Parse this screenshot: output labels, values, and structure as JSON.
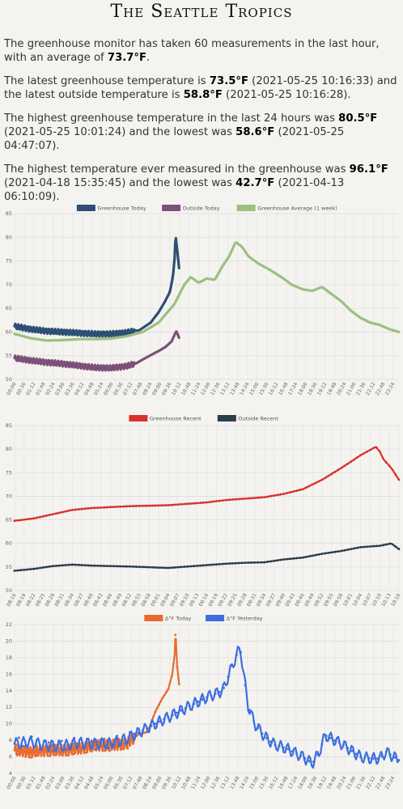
{
  "site_title": "The Seattle Tropics",
  "stats": {
    "p1_a": "The greenhouse monitor has taken 60 measurements in the last hour, with an average of ",
    "p1_v": "73.7°F",
    "p1_b": ".",
    "p2_a": "The latest greenhouse temperature is ",
    "p2_v1": "73.5°F",
    "p2_b": " (2021-05-25 10:16:33) and the latest outside temperature is ",
    "p2_v2": "58.8°F",
    "p2_c": " (2021-05-25 10:16:28).",
    "p3_a": "The highest greenhouse temperature in the last 24 hours was ",
    "p3_v1": "80.5°F",
    "p3_b": " (2021-05-25 10:01:24) and the lowest was ",
    "p3_v2": "58.6°F",
    "p3_c": " (2021-05-25 04:47:07).",
    "p4_a": "The highest temperature ever measured in the greenhouse was ",
    "p4_v1": "96.1°F",
    "p4_b": " (2021-04-18 15:35:45) and the lowest was ",
    "p4_v2": "42.7°F",
    "p4_c": " (2021-04-13 06:10:09)."
  },
  "chart_data": [
    {
      "type": "line",
      "legend_position": "top",
      "grid": true,
      "ylim": [
        50,
        85
      ],
      "yticks": [
        50,
        55,
        60,
        65,
        70,
        75,
        80,
        85
      ],
      "xlim": [
        0,
        24
      ],
      "xtick_labels": [
        "00:00",
        "00:36",
        "01:12",
        "01:48",
        "02:24",
        "03:00",
        "03:36",
        "04:12",
        "04:48",
        "05:24",
        "06:00",
        "06:36",
        "07:12",
        "07:48",
        "08:24",
        "09:00",
        "09:36",
        "10:12",
        "10:48",
        "11:24",
        "12:00",
        "12:36",
        "13:12",
        "13:48",
        "14:24",
        "15:00",
        "15:36",
        "16:12",
        "16:48",
        "17:24",
        "18:00",
        "18:36",
        "19:12",
        "19:48",
        "20:24",
        "21:00",
        "21:36",
        "22:12",
        "22:48",
        "23:24"
      ],
      "series": [
        {
          "name": "Greenhouse Today",
          "color": "#2e4f74",
          "points": [
            [
              0,
              61.2
            ],
            [
              1,
              60.6
            ],
            [
              2,
              60.2
            ],
            [
              3,
              60.0
            ],
            [
              4,
              59.8
            ],
            [
              5,
              59.6
            ],
            [
              6,
              59.6
            ],
            [
              7,
              59.9
            ],
            [
              7.8,
              60.4
            ],
            [
              8.5,
              62.0
            ],
            [
              9.0,
              64.2
            ],
            [
              9.4,
              66.5
            ],
            [
              9.7,
              68.5
            ],
            [
              9.9,
              72
            ],
            [
              10.0,
              76
            ],
            [
              10.05,
              80.5
            ],
            [
              10.15,
              77.5
            ],
            [
              10.27,
              73.5
            ]
          ]
        },
        {
          "name": "Outside Today",
          "color": "#7e4f7a",
          "points": [
            [
              0,
              54.5
            ],
            [
              1,
              54.0
            ],
            [
              2,
              53.6
            ],
            [
              3,
              53.3
            ],
            [
              4,
              52.9
            ],
            [
              5,
              52.5
            ],
            [
              6,
              52.4
            ],
            [
              7,
              52.8
            ],
            [
              7.6,
              53.4
            ],
            [
              8.0,
              54.2
            ],
            [
              8.6,
              55.3
            ],
            [
              9.0,
              56.0
            ],
            [
              9.4,
              56.8
            ],
            [
              9.8,
              58.0
            ],
            [
              10.0,
              59.5
            ],
            [
              10.1,
              60.2
            ],
            [
              10.27,
              58.8
            ]
          ]
        },
        {
          "name": "Greenhouse Average (1 week)",
          "color": "#9dbf82",
          "points": [
            [
              0,
              59.6
            ],
            [
              1,
              58.7
            ],
            [
              2,
              58.2
            ],
            [
              3,
              58.3
            ],
            [
              4,
              58.5
            ],
            [
              5,
              58.5
            ],
            [
              6,
              58.6
            ],
            [
              7,
              59.1
            ],
            [
              8,
              60.0
            ],
            [
              9,
              62.0
            ],
            [
              10,
              66.0
            ],
            [
              10.6,
              70.0
            ],
            [
              11.0,
              71.6
            ],
            [
              11.5,
              70.4
            ],
            [
              12.0,
              71.3
            ],
            [
              12.5,
              71.0
            ],
            [
              13.0,
              74.0
            ],
            [
              13.4,
              76.0
            ],
            [
              13.8,
              79.0
            ],
            [
              14.2,
              78.0
            ],
            [
              14.6,
              76.0
            ],
            [
              15.2,
              74.5
            ],
            [
              16.0,
              73.0
            ],
            [
              16.7,
              71.5
            ],
            [
              17.3,
              70.0
            ],
            [
              18.0,
              69.0
            ],
            [
              18.6,
              68.7
            ],
            [
              19.2,
              69.5
            ],
            [
              19.8,
              68.0
            ],
            [
              20.4,
              66.5
            ],
            [
              21.0,
              64.5
            ],
            [
              21.6,
              63.0
            ],
            [
              22.2,
              62.0
            ],
            [
              22.8,
              61.5
            ],
            [
              23.4,
              60.6
            ],
            [
              24,
              60.0
            ]
          ]
        }
      ]
    },
    {
      "type": "line",
      "legend_position": "top",
      "grid": true,
      "ylim": [
        50,
        85
      ],
      "yticks": [
        50,
        55,
        60,
        65,
        70,
        75,
        80,
        85
      ],
      "xlim": [
        0,
        1
      ],
      "xtick_labels": [
        "08:16",
        "08:19",
        "08:22",
        "08:25",
        "08:28",
        "08:31",
        "08:34",
        "08:37",
        "08:40",
        "08:43",
        "08:46",
        "08:49",
        "08:52",
        "08:55",
        "08:58",
        "09:01",
        "09:04",
        "09:07",
        "09:10",
        "09:13",
        "09:16",
        "09:19",
        "09:22",
        "09:25",
        "09:28",
        "09:31",
        "09:34",
        "09:37",
        "09:40",
        "09:43",
        "09:46",
        "09:49",
        "09:52",
        "09:55",
        "09:58",
        "10:01",
        "10:04",
        "10:07",
        "10:10",
        "10:13",
        "10:16"
      ],
      "series": [
        {
          "name": "Greenhouse Recent",
          "color": "#d9322e",
          "points": [
            [
              0,
              64.8
            ],
            [
              0.05,
              65.3
            ],
            [
              0.1,
              66.2
            ],
            [
              0.15,
              67.1
            ],
            [
              0.2,
              67.5
            ],
            [
              0.3,
              67.9
            ],
            [
              0.4,
              68.1
            ],
            [
              0.5,
              68.7
            ],
            [
              0.55,
              69.2
            ],
            [
              0.6,
              69.5
            ],
            [
              0.65,
              69.8
            ],
            [
              0.7,
              70.5
            ],
            [
              0.75,
              71.5
            ],
            [
              0.8,
              73.5
            ],
            [
              0.85,
              76.0
            ],
            [
              0.88,
              77.6
            ],
            [
              0.9,
              78.7
            ],
            [
              0.94,
              80.5
            ],
            [
              0.95,
              79.5
            ],
            [
              0.96,
              77.8
            ],
            [
              0.98,
              76.0
            ],
            [
              1.0,
              73.5
            ]
          ]
        },
        {
          "name": "Outside Recent",
          "color": "#2c3e4a",
          "points": [
            [
              0,
              54.2
            ],
            [
              0.05,
              54.6
            ],
            [
              0.1,
              55.2
            ],
            [
              0.15,
              55.5
            ],
            [
              0.2,
              55.3
            ],
            [
              0.3,
              55.1
            ],
            [
              0.4,
              54.8
            ],
            [
              0.5,
              55.4
            ],
            [
              0.55,
              55.7
            ],
            [
              0.6,
              55.9
            ],
            [
              0.65,
              56.0
            ],
            [
              0.7,
              56.6
            ],
            [
              0.75,
              57.0
            ],
            [
              0.8,
              57.8
            ],
            [
              0.85,
              58.4
            ],
            [
              0.9,
              59.2
            ],
            [
              0.95,
              59.5
            ],
            [
              0.98,
              60.0
            ],
            [
              1.0,
              58.8
            ]
          ]
        }
      ]
    },
    {
      "type": "line",
      "legend_position": "top",
      "grid": true,
      "ylim": [
        4,
        22
      ],
      "yticks": [
        4,
        6,
        8,
        10,
        12,
        14,
        16,
        18,
        20,
        22
      ],
      "xlim": [
        0,
        24
      ],
      "xtick_labels": [
        "00:00",
        "00:36",
        "01:12",
        "01:48",
        "02:24",
        "03:00",
        "03:36",
        "04:12",
        "04:48",
        "05:24",
        "06:00",
        "06:36",
        "07:12",
        "07:48",
        "08:24",
        "09:00",
        "09:36",
        "10:12",
        "10:48",
        "11:24",
        "12:00",
        "12:36",
        "13:12",
        "13:48",
        "14:24",
        "15:00",
        "15:36",
        "16:12",
        "16:48",
        "17:24",
        "18:00",
        "18:36",
        "19:12",
        "19:48",
        "20:24",
        "21:00",
        "21:36",
        "22:12",
        "22:48",
        "23:24"
      ],
      "series": [
        {
          "name": "Δ°F Today",
          "color": "#e96a2f",
          "points": [
            [
              0,
              6.8
            ],
            [
              1,
              6.6
            ],
            [
              2,
              6.8
            ],
            [
              3,
              6.8
            ],
            [
              4,
              7.0
            ],
            [
              5,
              7.4
            ],
            [
              6,
              7.4
            ],
            [
              7,
              7.6
            ],
            [
              7.8,
              8.8
            ],
            [
              8.3,
              9.0
            ],
            [
              8.8,
              11.5
            ],
            [
              9.2,
              13.0
            ],
            [
              9.6,
              14.2
            ],
            [
              9.85,
              16.0
            ],
            [
              10.0,
              18.5
            ],
            [
              10.05,
              21.2
            ],
            [
              10.15,
              17.0
            ],
            [
              10.27,
              14.8
            ]
          ]
        },
        {
          "name": "Δ°F Yesterday",
          "color": "#3b6fe0",
          "points": [
            [
              0,
              7.6
            ],
            [
              1,
              7.8
            ],
            [
              2,
              7.4
            ],
            [
              3,
              7.3
            ],
            [
              4,
              7.7
            ],
            [
              5,
              7.6
            ],
            [
              6,
              7.6
            ],
            [
              7,
              8.2
            ],
            [
              8,
              9.2
            ],
            [
              9,
              10.2
            ],
            [
              10,
              11.2
            ],
            [
              11,
              12.2
            ],
            [
              12,
              13.2
            ],
            [
              13,
              14.0
            ],
            [
              13.5,
              16.5
            ],
            [
              13.9,
              18.5
            ],
            [
              14.1,
              19.2
            ],
            [
              14.3,
              16.0
            ],
            [
              14.6,
              12.0
            ],
            [
              15.0,
              10.0
            ],
            [
              15.6,
              8.5
            ],
            [
              16.2,
              7.5
            ],
            [
              17.0,
              7.0
            ],
            [
              18.0,
              6.0
            ],
            [
              18.6,
              5.2
            ],
            [
              19.0,
              6.5
            ],
            [
              19.4,
              8.6
            ],
            [
              19.8,
              8.2
            ],
            [
              20.4,
              7.6
            ],
            [
              21.0,
              6.8
            ],
            [
              21.6,
              6.0
            ],
            [
              22.2,
              5.8
            ],
            [
              22.8,
              5.8
            ],
            [
              23.2,
              6.6
            ],
            [
              24,
              5.6
            ]
          ]
        }
      ]
    }
  ]
}
